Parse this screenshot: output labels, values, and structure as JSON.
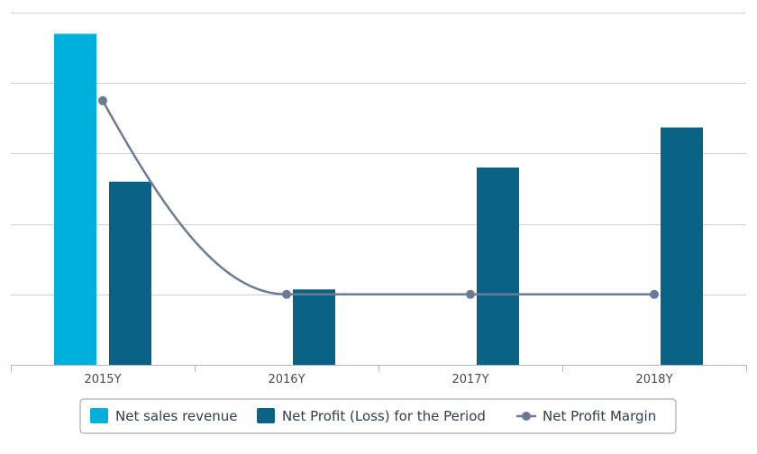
{
  "chart_data": {
    "type": "bar",
    "categories": [
      "2015Y",
      "2016Y",
      "2017Y",
      "2018Y"
    ],
    "series": [
      {
        "name": "Net sales revenue",
        "kind": "bar",
        "color": "#00b0dc",
        "values": [
          4.7,
          null,
          null,
          null
        ]
      },
      {
        "name": "Net Profit (Loss) for the Period",
        "kind": "bar",
        "color": "#0a6186",
        "values": [
          2.6,
          1.07,
          2.8,
          3.37
        ]
      },
      {
        "name": "Net Profit Margin",
        "kind": "line",
        "color": "#6b7b96",
        "values": [
          3.75,
          1.0,
          1.0,
          1.0
        ]
      }
    ],
    "ylim": [
      0,
      5
    ],
    "y_gridlines": 5,
    "y_tick_labels_visible": false,
    "grid": true,
    "legend_position": "bottom-center",
    "title": "",
    "xlabel": "",
    "ylabel": ""
  }
}
